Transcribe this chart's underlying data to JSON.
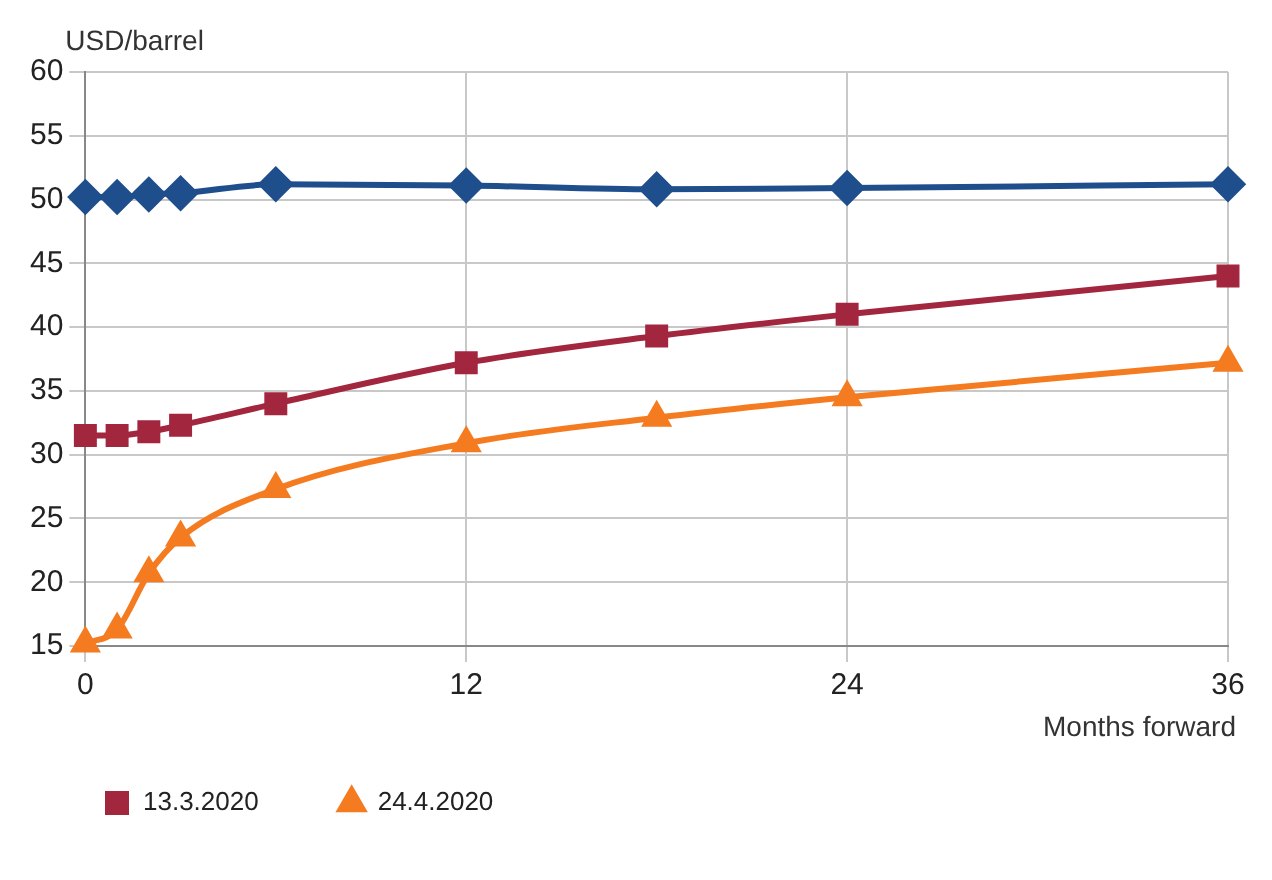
{
  "chart_data": {
    "type": "line",
    "ylabel": "USD/barrel",
    "xlabel": "Months forward",
    "x": [
      0,
      1,
      2,
      3,
      6,
      12,
      18,
      24,
      36
    ],
    "xlim": [
      0,
      36
    ],
    "xticks": [
      0,
      12,
      24,
      36
    ],
    "ylim": [
      15,
      60
    ],
    "yticks": [
      15,
      20,
      25,
      30,
      35,
      40,
      45,
      50,
      55,
      60
    ],
    "grid": true,
    "legend": "bottom",
    "line_style": "solid",
    "series": [
      {
        "color": "#1f4e8c",
        "marker": "diamond",
        "values": [
          50.2,
          50.2,
          50.4,
          50.5,
          51.2,
          51.1,
          50.8,
          50.9,
          51.2
        ]
      },
      {
        "name": "13.3.2020",
        "color": "#a3263f",
        "marker": "square",
        "values": [
          31.5,
          31.5,
          31.8,
          32.3,
          34.0,
          37.2,
          39.3,
          41.0,
          44.0
        ]
      },
      {
        "name": "24.4.2020",
        "color": "#f47b20",
        "marker": "triangle",
        "values": [
          15.2,
          16.3,
          20.7,
          23.5,
          27.3,
          30.9,
          32.9,
          34.5,
          37.2
        ]
      }
    ]
  }
}
